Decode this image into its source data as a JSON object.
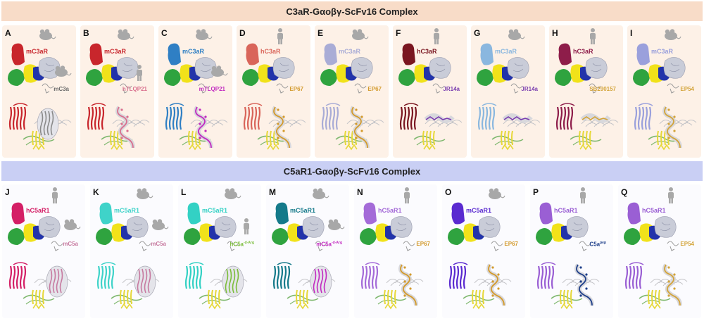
{
  "sections": [
    {
      "title": "C3aR-Gαoβγ-ScFv16 Complex",
      "panels": [
        {
          "letter": "A",
          "receptor": "mC3aR",
          "receptor_species": "mouse",
          "ligand": "mC3a",
          "ligand_species": "mouse",
          "ligand_type": "protein",
          "receptor_color": "#c8262c",
          "ligand_color": "#8a8a8a"
        },
        {
          "letter": "B",
          "receptor": "mC3aR",
          "receptor_species": "mouse",
          "ligand": "hTLQP21",
          "ligand_species": "human",
          "ligand_type": "peptide",
          "receptor_color": "#c8262c",
          "ligand_color": "#d9708e"
        },
        {
          "letter": "C",
          "receptor": "mC3aR",
          "receptor_species": "mouse",
          "ligand": "mTLQP21",
          "ligand_species": "mouse",
          "ligand_type": "peptide",
          "receptor_color": "#2f7fc4",
          "ligand_color": "#c22ac0"
        },
        {
          "letter": "D",
          "receptor": "hC3aR",
          "receptor_species": "human",
          "ligand": "EP67",
          "ligand_species": "",
          "ligand_type": "peptide",
          "receptor_color": "#d9655a",
          "ligand_color": "#d39a2c"
        },
        {
          "letter": "E",
          "receptor": "mC3aR",
          "receptor_species": "mouse",
          "ligand": "EP67",
          "ligand_species": "",
          "ligand_type": "peptide",
          "receptor_color": "#a9acd6",
          "ligand_color": "#d39a2c"
        },
        {
          "letter": "F",
          "receptor": "hC3aR",
          "receptor_species": "human",
          "ligand": "JR14a",
          "ligand_species": "",
          "ligand_type": "small",
          "receptor_color": "#7a1620",
          "ligand_color": "#7b3fb0"
        },
        {
          "letter": "G",
          "receptor": "mC3aR",
          "receptor_species": "mouse",
          "ligand": "JR14a",
          "ligand_species": "",
          "ligand_type": "small",
          "receptor_color": "#8ab7df",
          "ligand_color": "#7b3fb0"
        },
        {
          "letter": "H",
          "receptor": "hC3aR",
          "receptor_species": "human",
          "ligand": "SB290157",
          "ligand_species": "",
          "ligand_type": "small",
          "receptor_color": "#8e1d4a",
          "ligand_color": "#d3a43a"
        },
        {
          "letter": "I",
          "receptor": "mC3aR",
          "receptor_species": "mouse",
          "ligand": "EP54",
          "ligand_species": "",
          "ligand_type": "peptide",
          "receptor_color": "#9aa0dc",
          "ligand_color": "#d3a43a"
        }
      ]
    },
    {
      "title": "C5aR1-Gαoβγ-ScFv16 Complex",
      "panels": [
        {
          "letter": "J",
          "receptor": "hC5aR1",
          "receptor_species": "human",
          "ligand": "mC5a",
          "ligand_sup": "",
          "ligand_species": "mouse",
          "ligand_type": "protein",
          "receptor_color": "#d41f66",
          "ligand_color": "#c77aa0"
        },
        {
          "letter": "K",
          "receptor": "mC5aR1",
          "receptor_species": "mouse",
          "ligand": "mC5a",
          "ligand_sup": "",
          "ligand_species": "mouse",
          "ligand_type": "protein",
          "receptor_color": "#3fd3c9",
          "ligand_color": "#c77aa0"
        },
        {
          "letter": "L",
          "receptor": "mC5aR1",
          "receptor_species": "mouse",
          "ligand": "hC5a",
          "ligand_sup": "-d-Arg",
          "ligand_species": "human",
          "ligand_type": "protein",
          "receptor_color": "#33d1c4",
          "ligand_color": "#7bbd3b"
        },
        {
          "letter": "M",
          "receptor": "mC5aR1",
          "receptor_species": "mouse",
          "ligand": "mC5a",
          "ligand_sup": "-d-Arg",
          "ligand_species": "mouse",
          "ligand_type": "protein",
          "receptor_color": "#157a8a",
          "ligand_color": "#c22ac0"
        },
        {
          "letter": "N",
          "receptor": "hC5aR1",
          "receptor_species": "human",
          "ligand": "EP67",
          "ligand_sup": "",
          "ligand_species": "",
          "ligand_type": "peptide",
          "receptor_color": "#a46bd8",
          "ligand_color": "#d39a2c"
        },
        {
          "letter": "O",
          "receptor": "mC5aR1",
          "receptor_species": "mouse",
          "ligand": "EP67",
          "ligand_sup": "",
          "ligand_species": "",
          "ligand_type": "peptide",
          "receptor_color": "#5a2ad0",
          "ligand_color": "#d39a2c"
        },
        {
          "letter": "P",
          "receptor": "hC5aR1",
          "receptor_species": "human",
          "ligand": "C5a",
          "ligand_sup": "pep",
          "ligand_species": "",
          "ligand_type": "peptide",
          "receptor_color": "#9a5fd4",
          "ligand_color": "#1e3f8a"
        },
        {
          "letter": "Q",
          "receptor": "hC5aR1",
          "receptor_species": "human",
          "ligand": "EP54",
          "ligand_sup": "",
          "ligand_species": "",
          "ligand_type": "peptide",
          "receptor_color": "#9a5fd4",
          "ligand_color": "#d3a43a"
        }
      ]
    }
  ]
}
